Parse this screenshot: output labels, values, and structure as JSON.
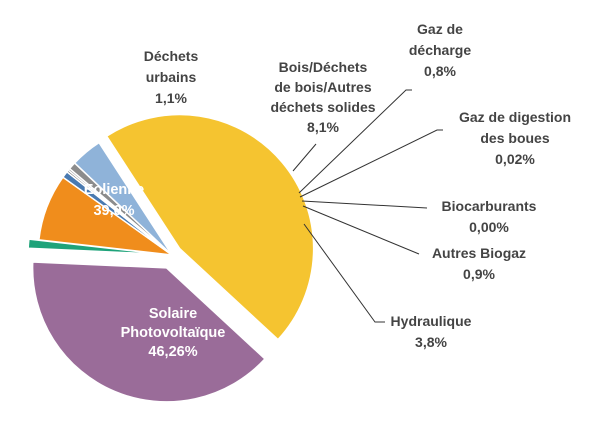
{
  "chart_data": {
    "type": "pie",
    "title": "",
    "slices": [
      {
        "key": "solaire",
        "label_lines": [
          "Solaire",
          "Photovoltaïque"
        ],
        "value_text": "46,26%",
        "value": 46.26,
        "color": "#F5C430",
        "explode": true
      },
      {
        "key": "eolienne",
        "label_lines": [
          "Eolienne"
        ],
        "value_text": "39,0%",
        "value": 39.0,
        "color": "#9A6C99",
        "explode": true
      },
      {
        "key": "dechets",
        "label_lines": [
          "Déchets",
          "urbains"
        ],
        "value_text": "1,1%",
        "value": 1.1,
        "color": "#1FA37A",
        "explode": true
      },
      {
        "key": "bois",
        "label_lines": [
          "Bois/Déchets",
          "de bois/Autres",
          "déchets solides"
        ],
        "value_text": "8,1%",
        "value": 8.1,
        "color": "#F08D1C",
        "explode": false
      },
      {
        "key": "gaz_decharge",
        "label_lines": [
          "Gaz de",
          "décharge"
        ],
        "value_text": "0,8%",
        "value": 0.8,
        "color": "#4A7AB0",
        "explode": false
      },
      {
        "key": "gaz_digestion",
        "label_lines": [
          "Gaz de digestion",
          "des boues"
        ],
        "value_text": "0,02%",
        "value": 0.02,
        "color": "#666666",
        "explode": false
      },
      {
        "key": "biocarburants",
        "label_lines": [
          "Biocarburants"
        ],
        "value_text": "0,00%",
        "value": 0.0,
        "color": "#999999",
        "explode": false
      },
      {
        "key": "autres_biogaz",
        "label_lines": [
          "Autres Biogaz"
        ],
        "value_text": "0,9%",
        "value": 0.9,
        "color": "#8C8C8C",
        "explode": false
      },
      {
        "key": "hydraulique",
        "label_lines": [
          "Hydraulique"
        ],
        "value_text": "3,8%",
        "value": 3.8,
        "color": "#8FB3D9",
        "explode": false
      }
    ]
  }
}
